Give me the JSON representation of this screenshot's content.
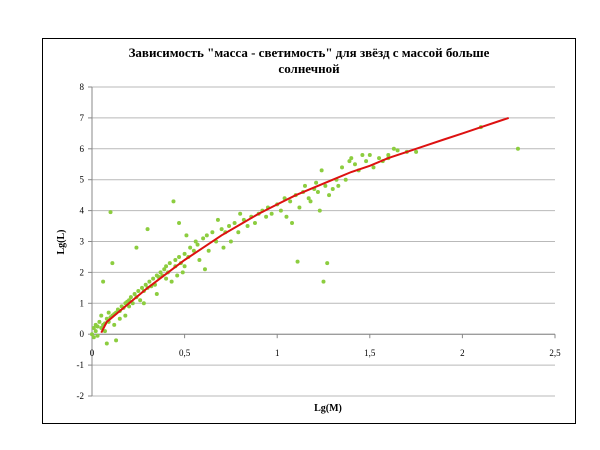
{
  "chart_data": {
    "type": "scatter",
    "title_lines": [
      "Зависимость \"масса - светимость\" для звёзд с массой больше",
      "солнечной"
    ],
    "xlabel": "Lg(M)",
    "ylabel": "Lg(L)",
    "xlim": [
      0,
      2.5
    ],
    "ylim": [
      -2,
      8
    ],
    "x_ticks": [
      0,
      0.5,
      1,
      1.5,
      2,
      2.5
    ],
    "x_tick_labels": [
      "0",
      "0,5",
      "1",
      "1,5",
      "2",
      "2,5"
    ],
    "y_ticks": [
      -2,
      -1,
      0,
      1,
      2,
      3,
      4,
      5,
      6,
      7,
      8
    ],
    "y_tick_labels": [
      "-2",
      "-1",
      "0",
      "1",
      "2",
      "3",
      "4",
      "5",
      "6",
      "7",
      "8"
    ],
    "grid": "horizontal",
    "colors": {
      "points": "#8ccd3f",
      "curve": "#dd1111",
      "grid": "#b9b9b9"
    },
    "points": [
      [
        0.0,
        0.0
      ],
      [
        0.01,
        0.2
      ],
      [
        0.01,
        -0.1
      ],
      [
        0.02,
        0.3
      ],
      [
        0.02,
        0.1
      ],
      [
        0.03,
        0.25
      ],
      [
        0.03,
        -0.05
      ],
      [
        0.04,
        0.4
      ],
      [
        0.05,
        0.2
      ],
      [
        0.05,
        0.6
      ],
      [
        0.06,
        0.3
      ],
      [
        0.06,
        1.7
      ],
      [
        0.07,
        0.35
      ],
      [
        0.07,
        0.1
      ],
      [
        0.08,
        0.5
      ],
      [
        0.08,
        -0.3
      ],
      [
        0.09,
        0.4
      ],
      [
        0.09,
        0.7
      ],
      [
        0.1,
        0.55
      ],
      [
        0.1,
        3.95
      ],
      [
        0.11,
        0.6
      ],
      [
        0.11,
        2.3
      ],
      [
        0.12,
        0.65
      ],
      [
        0.12,
        0.3
      ],
      [
        0.13,
        0.7
      ],
      [
        0.13,
        -0.2
      ],
      [
        0.14,
        0.8
      ],
      [
        0.15,
        0.75
      ],
      [
        0.15,
        0.5
      ],
      [
        0.16,
        0.9
      ],
      [
        0.17,
        0.85
      ],
      [
        0.18,
        1.0
      ],
      [
        0.18,
        0.6
      ],
      [
        0.19,
        1.05
      ],
      [
        0.2,
        1.1
      ],
      [
        0.2,
        0.9
      ],
      [
        0.21,
        1.2
      ],
      [
        0.22,
        1.0
      ],
      [
        0.23,
        1.3
      ],
      [
        0.24,
        1.2
      ],
      [
        0.24,
        2.8
      ],
      [
        0.25,
        1.4
      ],
      [
        0.26,
        1.1
      ],
      [
        0.27,
        1.5
      ],
      [
        0.28,
        1.4
      ],
      [
        0.28,
        1.0
      ],
      [
        0.29,
        1.6
      ],
      [
        0.3,
        1.5
      ],
      [
        0.3,
        3.4
      ],
      [
        0.31,
        1.7
      ],
      [
        0.32,
        1.55
      ],
      [
        0.33,
        1.8
      ],
      [
        0.34,
        1.6
      ],
      [
        0.35,
        1.9
      ],
      [
        0.35,
        1.3
      ],
      [
        0.36,
        1.85
      ],
      [
        0.37,
        2.0
      ],
      [
        0.38,
        1.9
      ],
      [
        0.39,
        2.1
      ],
      [
        0.4,
        1.8
      ],
      [
        0.4,
        2.2
      ],
      [
        0.41,
        2.0
      ],
      [
        0.42,
        2.3
      ],
      [
        0.43,
        1.7
      ],
      [
        0.44,
        4.3
      ],
      [
        0.45,
        2.2
      ],
      [
        0.45,
        2.4
      ],
      [
        0.46,
        1.9
      ],
      [
        0.47,
        2.5
      ],
      [
        0.47,
        3.6
      ],
      [
        0.48,
        2.3
      ],
      [
        0.49,
        2.0
      ],
      [
        0.5,
        2.6
      ],
      [
        0.5,
        2.2
      ],
      [
        0.51,
        3.2
      ],
      [
        0.52,
        2.5
      ],
      [
        0.53,
        2.8
      ],
      [
        0.55,
        2.7
      ],
      [
        0.56,
        3.0
      ],
      [
        0.57,
        2.9
      ],
      [
        0.58,
        2.4
      ],
      [
        0.6,
        3.1
      ],
      [
        0.61,
        2.1
      ],
      [
        0.62,
        3.2
      ],
      [
        0.63,
        2.7
      ],
      [
        0.65,
        3.3
      ],
      [
        0.67,
        3.0
      ],
      [
        0.68,
        3.7
      ],
      [
        0.7,
        3.4
      ],
      [
        0.71,
        2.8
      ],
      [
        0.72,
        3.3
      ],
      [
        0.74,
        3.5
      ],
      [
        0.75,
        3.0
      ],
      [
        0.77,
        3.6
      ],
      [
        0.79,
        3.3
      ],
      [
        0.8,
        3.9
      ],
      [
        0.82,
        3.7
      ],
      [
        0.84,
        3.5
      ],
      [
        0.86,
        3.8
      ],
      [
        0.88,
        3.6
      ],
      [
        0.9,
        3.9
      ],
      [
        0.92,
        4.0
      ],
      [
        0.94,
        3.8
      ],
      [
        0.95,
        4.1
      ],
      [
        0.97,
        3.9
      ],
      [
        1.0,
        4.2
      ],
      [
        1.02,
        4.0
      ],
      [
        1.04,
        4.4
      ],
      [
        1.05,
        3.8
      ],
      [
        1.07,
        4.3
      ],
      [
        1.08,
        3.6
      ],
      [
        1.1,
        4.5
      ],
      [
        1.11,
        2.35
      ],
      [
        1.12,
        4.1
      ],
      [
        1.14,
        4.6
      ],
      [
        1.15,
        4.8
      ],
      [
        1.17,
        4.4
      ],
      [
        1.18,
        4.3
      ],
      [
        1.2,
        4.7
      ],
      [
        1.21,
        4.9
      ],
      [
        1.22,
        4.6
      ],
      [
        1.23,
        4.0
      ],
      [
        1.24,
        5.3
      ],
      [
        1.25,
        1.7
      ],
      [
        1.26,
        4.8
      ],
      [
        1.27,
        2.3
      ],
      [
        1.28,
        4.5
      ],
      [
        1.3,
        4.7
      ],
      [
        1.32,
        5.0
      ],
      [
        1.33,
        4.8
      ],
      [
        1.35,
        5.4
      ],
      [
        1.37,
        5.0
      ],
      [
        1.39,
        5.6
      ],
      [
        1.4,
        5.7
      ],
      [
        1.42,
        5.5
      ],
      [
        1.44,
        5.3
      ],
      [
        1.46,
        5.8
      ],
      [
        1.48,
        5.6
      ],
      [
        1.5,
        5.8
      ],
      [
        1.52,
        5.4
      ],
      [
        1.55,
        5.7
      ],
      [
        1.57,
        5.6
      ],
      [
        1.6,
        5.8
      ],
      [
        1.6,
        5.7
      ],
      [
        1.63,
        6.0
      ],
      [
        1.65,
        5.95
      ],
      [
        1.7,
        5.9
      ],
      [
        1.75,
        5.9
      ],
      [
        2.1,
        6.7
      ],
      [
        2.3,
        6.0
      ]
    ],
    "fit_curve": [
      [
        0.05,
        0.05
      ],
      [
        0.08,
        0.4
      ],
      [
        0.1,
        0.5
      ],
      [
        0.15,
        0.75
      ],
      [
        0.2,
        1.0
      ],
      [
        0.3,
        1.5
      ],
      [
        0.4,
        1.95
      ],
      [
        0.5,
        2.4
      ],
      [
        0.6,
        2.8
      ],
      [
        0.7,
        3.2
      ],
      [
        0.8,
        3.55
      ],
      [
        0.9,
        3.9
      ],
      [
        1.0,
        4.2
      ],
      [
        1.1,
        4.5
      ],
      [
        1.2,
        4.75
      ],
      [
        1.3,
        5.0
      ],
      [
        1.4,
        5.25
      ],
      [
        1.5,
        5.45
      ],
      [
        1.6,
        5.7
      ],
      [
        1.7,
        5.9
      ],
      [
        1.8,
        6.1
      ],
      [
        1.9,
        6.3
      ],
      [
        2.0,
        6.5
      ],
      [
        2.1,
        6.7
      ],
      [
        2.2,
        6.9
      ],
      [
        2.25,
        7.0
      ]
    ]
  }
}
